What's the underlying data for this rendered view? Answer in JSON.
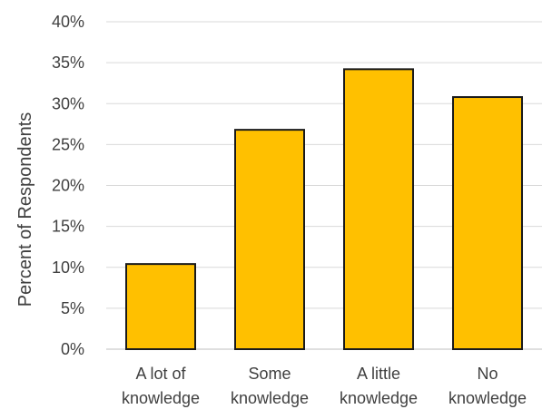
{
  "chart_data": {
    "type": "bar",
    "title": "",
    "xlabel": "",
    "ylabel": "Percent of Respondents",
    "ylim": [
      0,
      40
    ],
    "y_ticks": [
      "0%",
      "5%",
      "10%",
      "15%",
      "20%",
      "25%",
      "30%",
      "35%",
      "40%"
    ],
    "y_tick_values": [
      0,
      5,
      10,
      15,
      20,
      25,
      30,
      35,
      40
    ],
    "categories": [
      [
        "A lot of",
        "knowledge"
      ],
      [
        "Some",
        "knowledge"
      ],
      [
        "A little",
        "knowledge"
      ],
      [
        "No",
        "knowledge"
      ]
    ],
    "values": [
      10.4,
      26.8,
      34.2,
      30.8
    ],
    "grid": true,
    "legend": "none",
    "colors": {
      "bar_fill": "#ffc000",
      "bar_stroke": "#1a1a1a",
      "grid": "#d9d9d9",
      "text": "#404040"
    }
  }
}
